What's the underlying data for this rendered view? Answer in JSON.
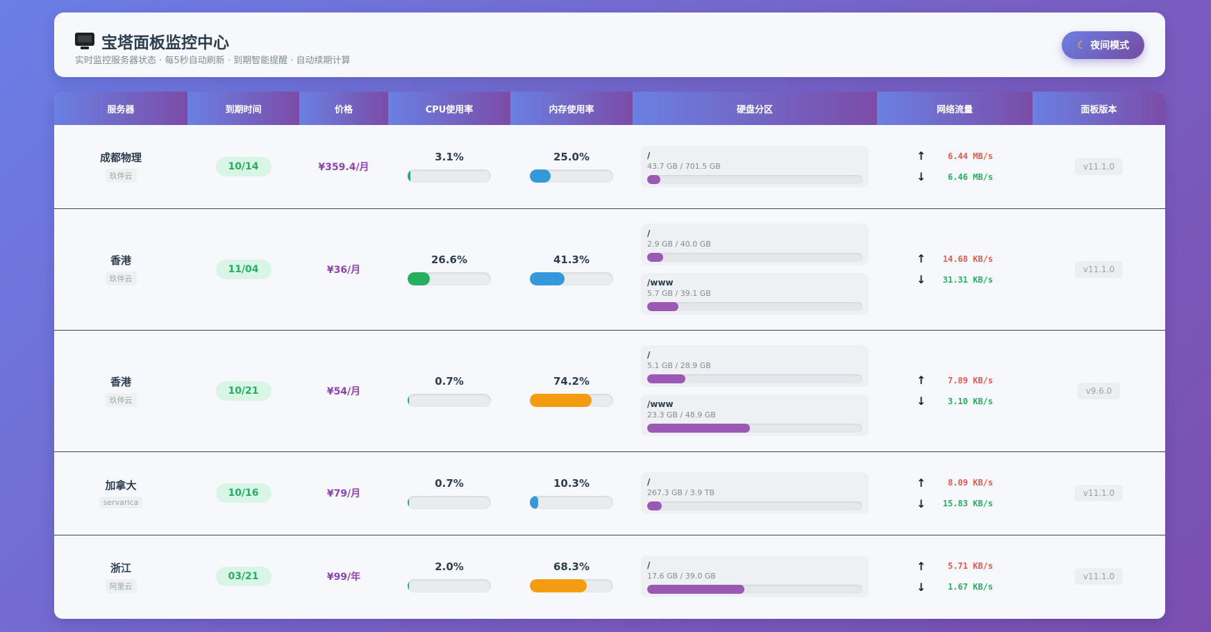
{
  "header": {
    "title": "宝塔面板监控中心",
    "subtitle": "实时监控服务器状态 · 每5秒自动刷新 · 到期智能提醒 · 自动续期计算",
    "night_button": "夜间模式"
  },
  "table": {
    "columns": [
      "服务器",
      "到期时间",
      "价格",
      "CPU使用率",
      "内存使用率",
      "硬盘分区",
      "网络流量",
      "面板版本"
    ],
    "rows": [
      {
        "name": "成都物理",
        "provider": "玖伴云",
        "expiry": "10/14",
        "price": "¥359.4/月",
        "cpu": "3.1%",
        "cpu_pct": 3.1,
        "mem": "25.0%",
        "mem_pct": 25.0,
        "disks": [
          {
            "path": "/",
            "size": "43.7 GB / 701.5 GB",
            "pct": 6.2
          }
        ],
        "up": "6.44 MB/s",
        "down": "6.46 MB/s",
        "version": "v11.1.0"
      },
      {
        "name": "香港",
        "provider": "玖伴云",
        "expiry": "11/04",
        "price": "¥36/月",
        "cpu": "26.6%",
        "cpu_pct": 26.6,
        "mem": "41.3%",
        "mem_pct": 41.3,
        "disks": [
          {
            "path": "/",
            "size": "2.9 GB / 40.0 GB",
            "pct": 7.3
          },
          {
            "path": "/www",
            "size": "5.7 GB / 39.1 GB",
            "pct": 14.6
          }
        ],
        "up": "14.68 KB/s",
        "down": "31.31 KB/s",
        "version": "v11.1.0"
      },
      {
        "name": "香港",
        "provider": "玖伴云",
        "expiry": "10/21",
        "price": "¥54/月",
        "cpu": "0.7%",
        "cpu_pct": 0.7,
        "mem": "74.2%",
        "mem_pct": 74.2,
        "disks": [
          {
            "path": "/",
            "size": "5.1 GB / 28.9 GB",
            "pct": 17.6
          },
          {
            "path": "/www",
            "size": "23.3 GB / 48.9 GB",
            "pct": 47.6
          }
        ],
        "up": "7.89 KB/s",
        "down": "3.10 KB/s",
        "version": "v9.6.0"
      },
      {
        "name": "加拿大",
        "provider": "servarica",
        "expiry": "10/16",
        "price": "¥79/月",
        "cpu": "0.7%",
        "cpu_pct": 0.7,
        "mem": "10.3%",
        "mem_pct": 10.3,
        "disks": [
          {
            "path": "/",
            "size": "267.3 GB / 3.9 TB",
            "pct": 6.7
          }
        ],
        "up": "8.09 KB/s",
        "down": "15.83 KB/s",
        "version": "v11.1.0"
      },
      {
        "name": "浙江",
        "provider": "阿里云",
        "expiry": "03/21",
        "price": "¥99/年",
        "cpu": "2.0%",
        "cpu_pct": 2.0,
        "mem": "68.3%",
        "mem_pct": 68.3,
        "disks": [
          {
            "path": "/",
            "size": "17.6 GB / 39.0 GB",
            "pct": 45.1
          }
        ],
        "up": "5.71 KB/s",
        "down": "1.67 KB/s",
        "version": "v11.1.0"
      }
    ]
  },
  "colors": {
    "cpu_bar": "#27ae60",
    "mem_bar_normal": "#3498db",
    "mem_bar_warn": "#f39c12",
    "disk_bar": "#9b59b6",
    "upload_text": "#e05a4b",
    "download_text": "#27ae60"
  },
  "icons": {
    "title_icon": "monitor-icon",
    "night_icon": "moon-icon",
    "upload": "arrow-up-icon",
    "download": "arrow-down-icon"
  }
}
